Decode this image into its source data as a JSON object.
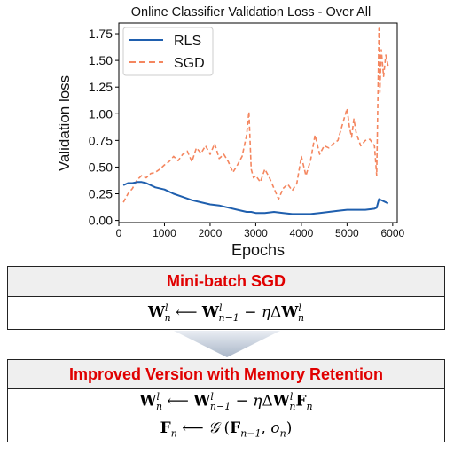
{
  "chart_data": {
    "type": "line",
    "title": "Online Classifier Validation Loss - Over All",
    "xlabel": "Epochs",
    "ylabel": "Validation loss",
    "xlim": [
      0,
      6100
    ],
    "ylim": [
      -0.02,
      1.85
    ],
    "xticks": [
      "0",
      "1000",
      "2000",
      "3000",
      "4000",
      "5000",
      "6000"
    ],
    "yticks": [
      "0.00",
      "0.25",
      "0.50",
      "0.75",
      "1.00",
      "1.25",
      "1.50",
      "1.75"
    ],
    "grid": false,
    "legend": "top-left",
    "series": [
      {
        "name": "RLS",
        "color": "#1f5fae",
        "style": "solid",
        "x": [
          100,
          200,
          300,
          400,
          500,
          600,
          700,
          800,
          1000,
          1200,
          1400,
          1600,
          1800,
          2000,
          2200,
          2400,
          2600,
          2800,
          2900,
          3000,
          3200,
          3400,
          3600,
          3800,
          4000,
          4200,
          4400,
          4600,
          4800,
          5000,
          5200,
          5400,
          5600,
          5650,
          5700,
          5800,
          5900
        ],
        "y": [
          0.33,
          0.35,
          0.35,
          0.36,
          0.36,
          0.35,
          0.33,
          0.31,
          0.29,
          0.25,
          0.22,
          0.19,
          0.17,
          0.15,
          0.14,
          0.12,
          0.1,
          0.08,
          0.08,
          0.07,
          0.07,
          0.08,
          0.07,
          0.06,
          0.06,
          0.06,
          0.07,
          0.08,
          0.09,
          0.1,
          0.1,
          0.1,
          0.11,
          0.12,
          0.2,
          0.18,
          0.16
        ]
      },
      {
        "name": "SGD",
        "color": "#f4865f",
        "style": "dashed",
        "x": [
          100,
          200,
          300,
          400,
          500,
          600,
          700,
          800,
          900,
          1000,
          1100,
          1200,
          1300,
          1400,
          1500,
          1600,
          1700,
          1800,
          1900,
          2000,
          2100,
          2200,
          2300,
          2400,
          2500,
          2600,
          2700,
          2800,
          2850,
          2900,
          2950,
          3000,
          3100,
          3200,
          3300,
          3400,
          3500,
          3600,
          3700,
          3800,
          3900,
          4000,
          4100,
          4200,
          4300,
          4400,
          4500,
          4600,
          4700,
          4800,
          4900,
          5000,
          5050,
          5100,
          5150,
          5200,
          5300,
          5400,
          5500,
          5600,
          5650,
          5700,
          5720,
          5750,
          5800,
          5850,
          5900
        ],
        "y": [
          0.17,
          0.25,
          0.3,
          0.38,
          0.42,
          0.4,
          0.44,
          0.45,
          0.48,
          0.52,
          0.55,
          0.6,
          0.56,
          0.62,
          0.65,
          0.55,
          0.68,
          0.63,
          0.7,
          0.62,
          0.72,
          0.58,
          0.62,
          0.55,
          0.45,
          0.52,
          0.6,
          0.8,
          1.02,
          0.48,
          0.4,
          0.42,
          0.36,
          0.48,
          0.4,
          0.3,
          0.2,
          0.3,
          0.34,
          0.28,
          0.35,
          0.6,
          0.42,
          0.56,
          0.8,
          0.62,
          0.7,
          0.68,
          0.72,
          0.75,
          0.9,
          1.05,
          0.88,
          0.78,
          0.95,
          0.82,
          0.7,
          0.75,
          0.76,
          0.7,
          0.42,
          1.8,
          1.2,
          1.6,
          1.35,
          1.55,
          1.45
        ]
      }
    ]
  },
  "box1": {
    "title": "Mini-batch SGD"
  },
  "box2": {
    "title": "Improved Version with Memory Retention"
  }
}
